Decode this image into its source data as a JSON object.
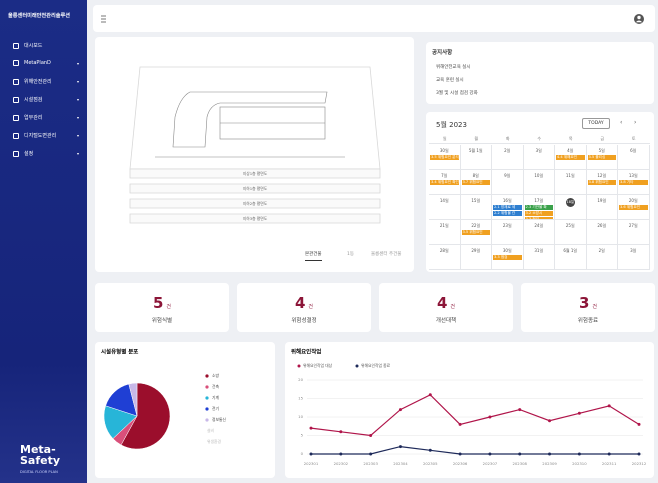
{
  "sidebar": {
    "title": "울릉센터미래안전관리솔루션",
    "menu": [
      "대시보드",
      "MetaPlanD",
      "위해안전관리",
      "시설점검",
      "업무관리",
      "디지털도면관리",
      "설정"
    ],
    "logo": "Meta-Safety",
    "logo_sub": "DIGITAL FLOOR PLAN"
  },
  "floor_plan": {
    "floors": [
      "지상1층 평면도",
      "지하1층 평면도",
      "지하2층 평면도",
      "지하3층 평면도"
    ],
    "tabs": [
      "본관건물",
      "1동",
      "울릉센터 주건물"
    ]
  },
  "notices": {
    "title": "공지사항",
    "items": [
      "위해안전교육 실시",
      "교육 훈련 실시",
      "3월 및 시설 점검 강화"
    ]
  },
  "calendar": {
    "title": "5월 2023",
    "today": "TODAY",
    "weekdays": [
      "일",
      "월",
      "화",
      "수",
      "목",
      "금",
      "토"
    ],
    "weeks": [
      [
        {
          "date": "30일",
          "events": [
            {
              "text": "3.5 위험요인 분석",
              "color": "#f0a020"
            }
          ]
        },
        {
          "date": "5월 1일",
          "events": []
        },
        {
          "date": "2일",
          "events": []
        },
        {
          "date": "3일",
          "events": []
        },
        {
          "date": "4일",
          "events": [
            {
              "text": "4.4 위해요인",
              "color": "#f0a020"
            }
          ]
        },
        {
          "date": "5일",
          "events": [
            {
              "text": "3.5 폴리싱",
              "color": "#f0a020"
            }
          ]
        },
        {
          "date": "6일",
          "events": []
        }
      ],
      [
        {
          "date": "7일",
          "events": [
            {
              "text": "3.4 위험요인 확인",
              "color": "#f0a020"
            }
          ]
        },
        {
          "date": "8일",
          "events": [
            {
              "text": "3.7 위험요인",
              "color": "#f0a020"
            }
          ]
        },
        {
          "date": "9일",
          "events": []
        },
        {
          "date": "10일",
          "events": []
        },
        {
          "date": "11일",
          "events": []
        },
        {
          "date": "12일",
          "events": [
            {
              "text": "3.8 위험요인",
              "color": "#f0a020"
            }
          ]
        },
        {
          "date": "13일",
          "events": [
            {
              "text": "3.8 기타",
              "color": "#f0a020"
            }
          ]
        }
      ],
      [
        {
          "date": "14일",
          "events": []
        },
        {
          "date": "15일",
          "events": []
        },
        {
          "date": "16일",
          "events": [
            {
              "text": "2.1 방재로 세",
              "color": "#2f7fd0"
            },
            {
              "text": "2.2 위험물 관",
              "color": "#2f7fd0"
            }
          ]
        },
        {
          "date": "17일",
          "events": [
            {
              "text": "2.3 기반물 확",
              "color": "#3aa14a"
            },
            {
              "text": "3.2 소방시",
              "color": "#f0a020"
            },
            {
              "text": "3.3 점검",
              "color": "#f0a020"
            }
          ]
        },
        {
          "date": "18일",
          "highlight": true,
          "events": []
        },
        {
          "date": "19일",
          "events": []
        },
        {
          "date": "20일",
          "events": [
            {
              "text": "3.6 위험요인",
              "color": "#f0a020"
            }
          ]
        }
      ],
      [
        {
          "date": "21일",
          "events": []
        },
        {
          "date": "22일",
          "events": [
            {
              "text": "3.5 위험요인",
              "color": "#f0a020"
            }
          ]
        },
        {
          "date": "23일",
          "events": []
        },
        {
          "date": "24일",
          "events": []
        },
        {
          "date": "25일",
          "events": []
        },
        {
          "date": "26일",
          "events": []
        },
        {
          "date": "27일",
          "events": []
        }
      ],
      [
        {
          "date": "28일",
          "events": []
        },
        {
          "date": "29일",
          "events": []
        },
        {
          "date": "30일",
          "events": [
            {
              "text": "3.3 점검",
              "color": "#f0a020"
            }
          ]
        },
        {
          "date": "31일",
          "events": []
        },
        {
          "date": "6월 1일",
          "events": []
        },
        {
          "date": "2일",
          "events": []
        },
        {
          "date": "3일",
          "events": []
        }
      ]
    ]
  },
  "stats": [
    {
      "value": 5,
      "unit": "건",
      "label": "위험식별"
    },
    {
      "value": 4,
      "unit": "건",
      "label": "위험성결정"
    },
    {
      "value": 4,
      "unit": "건",
      "label": "개선대책"
    },
    {
      "value": 3,
      "unit": "건",
      "label": "위험종료"
    }
  ],
  "chart_data": [
    {
      "type": "pie",
      "title": "시설유형별 분포",
      "categories": [
        "소방",
        "건축",
        "기계",
        "전기",
        "정보통신",
        "설비",
        "위생환경"
      ],
      "values": [
        58,
        5,
        17,
        16,
        4,
        0,
        0
      ],
      "colors": [
        "#9b0e2c",
        "#d94f7a",
        "#27b5d8",
        "#1f3fd4",
        "#c8b8e8",
        "#bbbbbb",
        "#bbbbbb"
      ]
    },
    {
      "type": "line",
      "title": "위해요인작업",
      "x": [
        "202301",
        "202302",
        "202303",
        "202304",
        "202305",
        "202306",
        "202307",
        "202308",
        "202309",
        "202310",
        "202311",
        "202312"
      ],
      "series": [
        {
          "name": "위해요인작업 대상",
          "color": "#b0154a",
          "values": [
            7,
            6,
            5,
            12,
            16,
            8,
            10,
            12,
            9,
            11,
            13,
            8
          ]
        },
        {
          "name": "위해요인작업 종료",
          "color": "#1e2a5a",
          "values": [
            0,
            0,
            0,
            2,
            1,
            0,
            0,
            0,
            0,
            0,
            0,
            0
          ]
        }
      ],
      "ylim": [
        0,
        20
      ],
      "yticks": [
        0,
        5,
        10,
        15,
        20
      ],
      "grid": true
    }
  ]
}
